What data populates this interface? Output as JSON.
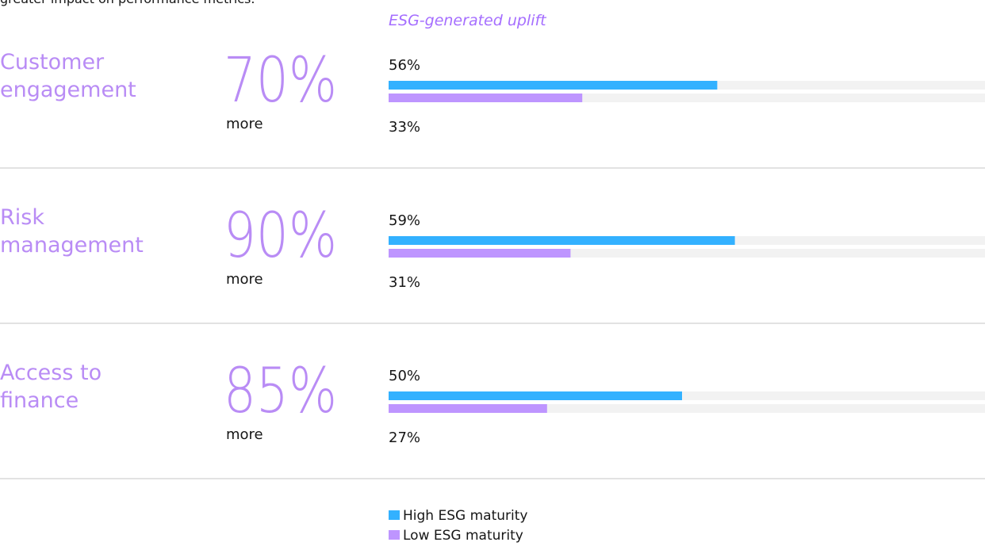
{
  "chart_data": {
    "type": "bar",
    "intro": "greater impact on performance metrics.",
    "subtitle": "ESG-generated uplift",
    "categories": [
      "Customer engagement",
      "Risk management",
      "Access to finance"
    ],
    "uplift": {
      "values": [
        70,
        90,
        85
      ],
      "value_labels": [
        "70%",
        "90%",
        "85%"
      ],
      "suffix": "more"
    },
    "series": [
      {
        "name": "High ESG maturity",
        "color": "#33b1ff",
        "values": [
          56,
          59,
          50
        ],
        "value_labels": [
          "56%",
          "59%",
          "50%"
        ]
      },
      {
        "name": "Low ESG maturity",
        "color": "#be95ff",
        "values": [
          33,
          31,
          27
        ],
        "value_labels": [
          "33%",
          "31%",
          "27%"
        ]
      }
    ],
    "xlim": [
      0,
      100
    ]
  }
}
